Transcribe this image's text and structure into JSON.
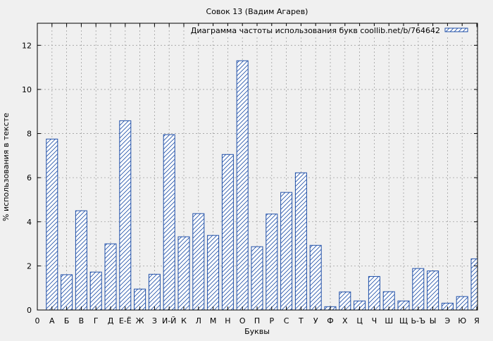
{
  "chart_data": {
    "type": "bar",
    "title": "Совок 13 (Вадим Агарев)",
    "xlabel": "Буквы",
    "ylabel": "% использования в тексте",
    "legend": {
      "label": "Диаграмма частоты использования букв coollib.net/b/764642",
      "position": "top-right"
    },
    "x_first_tick": "0",
    "categories": [
      "А",
      "Б",
      "В",
      "Г",
      "Д",
      "Е-Ё",
      "Ж",
      "З",
      "И-Й",
      "К",
      "Л",
      "М",
      "Н",
      "О",
      "П",
      "Р",
      "С",
      "Т",
      "У",
      "Ф",
      "Х",
      "Ц",
      "Ч",
      "Ш",
      "Щ",
      "Ь-Ъ",
      "Ы",
      "Э",
      "Ю",
      "Я"
    ],
    "values": [
      7.75,
      1.6,
      4.5,
      1.72,
      3.0,
      8.58,
      0.95,
      1.62,
      7.95,
      3.32,
      4.37,
      3.38,
      7.05,
      11.3,
      2.87,
      4.35,
      5.33,
      6.22,
      2.93,
      0.15,
      0.82,
      0.41,
      1.52,
      0.83,
      0.41,
      1.88,
      1.77,
      0.31,
      0.61,
      2.32
    ],
    "ylim": [
      0,
      13
    ],
    "yticks": [
      "0",
      "2",
      "4",
      "6",
      "8",
      "10",
      "12"
    ],
    "grid": true,
    "colors": {
      "bar_stroke": "#1f4fa8",
      "bar_hatch": "#1f4fa8",
      "bar_fill": "#ffffff",
      "plot_background": "#f0f0f0",
      "grid": "#a0a0a0"
    }
  }
}
